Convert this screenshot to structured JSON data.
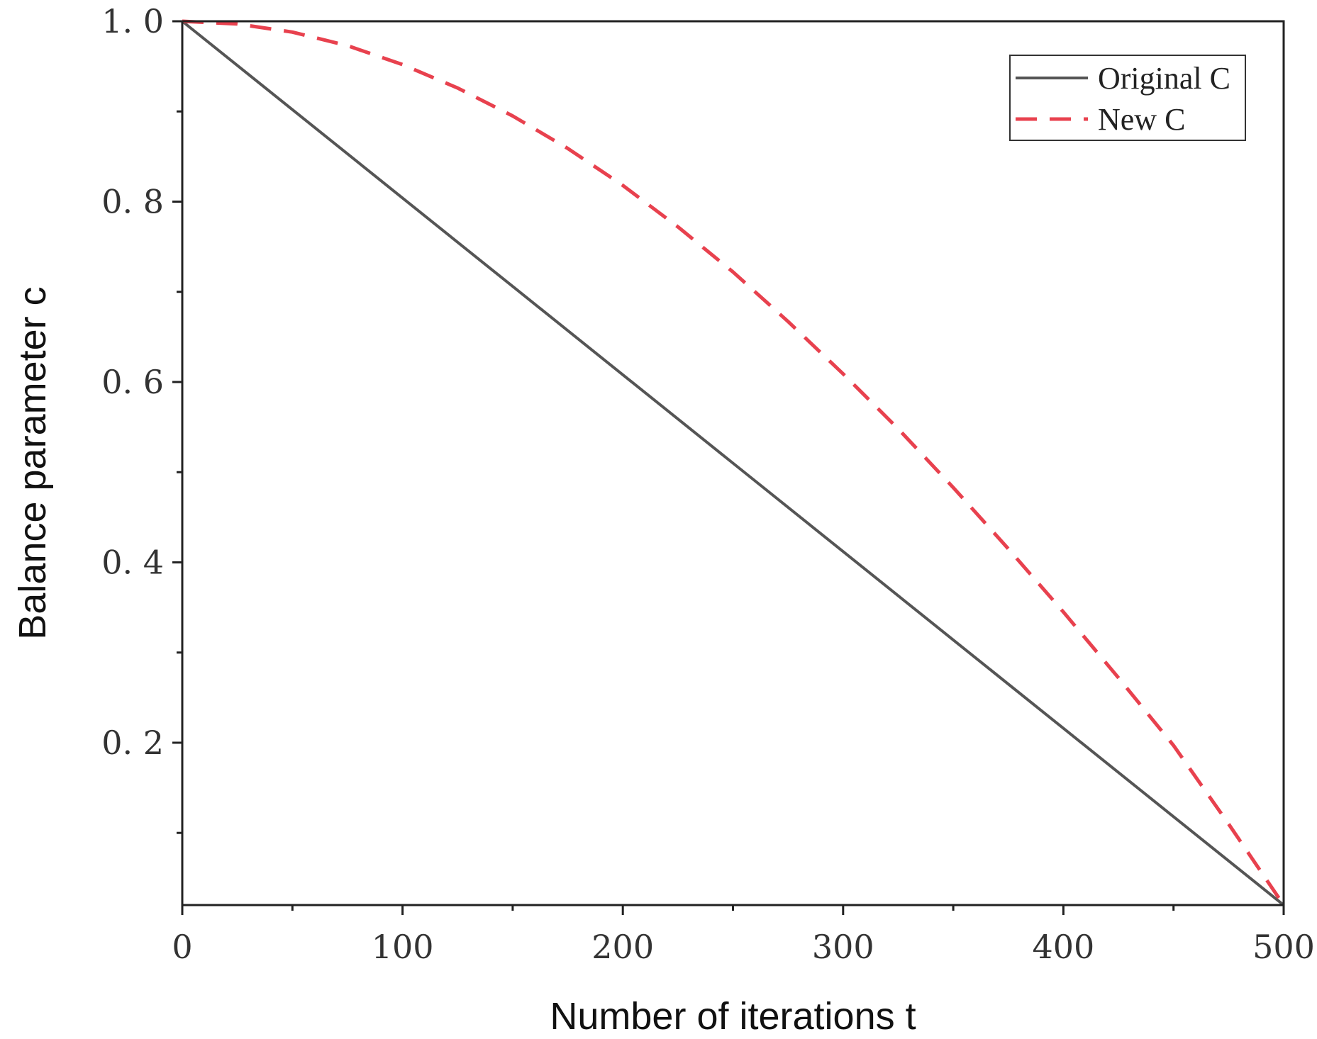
{
  "chart_data": {
    "type": "line",
    "xlabel": "Number of iterations t",
    "ylabel": "Balance parameter c",
    "xlim": [
      0,
      500
    ],
    "ylim": [
      0.02,
      1.0
    ],
    "x_ticks": [
      0,
      100,
      200,
      300,
      400,
      500
    ],
    "x_tick_labels": [
      "0",
      "100",
      "200",
      "300",
      "400",
      "500"
    ],
    "y_ticks": [
      0.2,
      0.4,
      0.6,
      0.8,
      1.0
    ],
    "y_tick_labels": [
      "0. 2",
      "0. 4",
      "0. 6",
      "0. 8",
      "1. 0"
    ],
    "grid": false,
    "legend_position": "top-right",
    "series": [
      {
        "name": "Original C",
        "color": "#555555",
        "line_style": "solid",
        "x": [
          0,
          50,
          100,
          150,
          200,
          250,
          300,
          350,
          400,
          450,
          500
        ],
        "y": [
          1.0,
          0.902,
          0.804,
          0.706,
          0.608,
          0.51,
          0.412,
          0.314,
          0.216,
          0.118,
          0.02
        ]
      },
      {
        "name": "New C",
        "color": "#e8414e",
        "line_style": "dashed",
        "x": [
          0,
          25,
          50,
          75,
          100,
          125,
          150,
          175,
          200,
          225,
          250,
          275,
          300,
          325,
          350,
          375,
          400,
          425,
          450,
          475,
          500
        ],
        "y": [
          1.0,
          0.997,
          0.988,
          0.973,
          0.952,
          0.926,
          0.895,
          0.859,
          0.818,
          0.772,
          0.722,
          0.667,
          0.609,
          0.548,
          0.483,
          0.415,
          0.345,
          0.272,
          0.197,
          0.11,
          0.02
        ]
      }
    ]
  }
}
